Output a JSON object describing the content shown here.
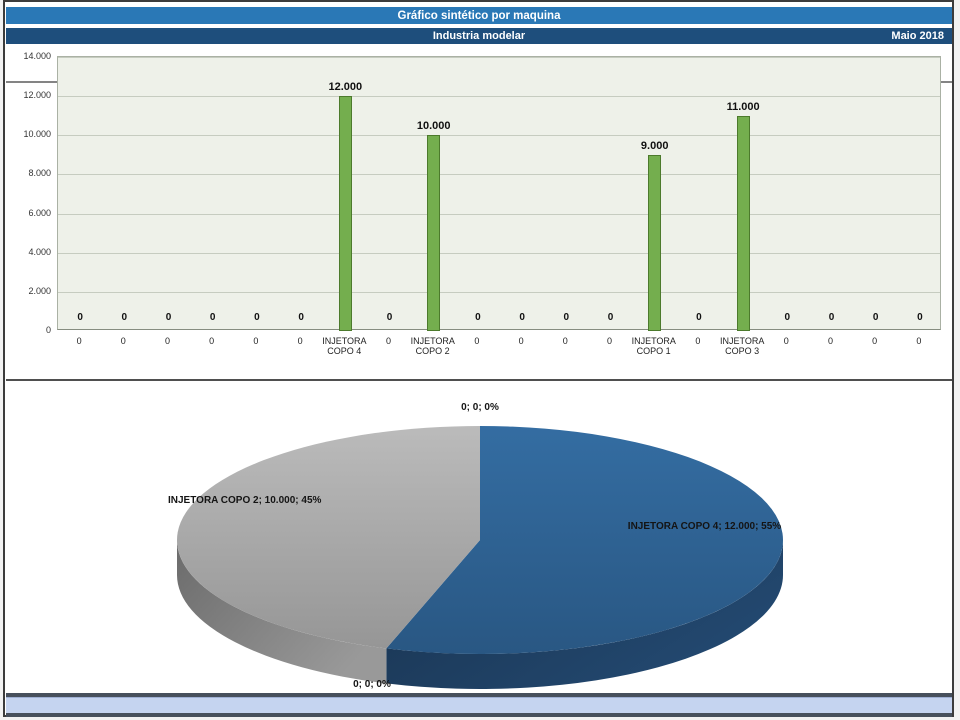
{
  "window": {
    "title": "Gráfico sintético por maquina",
    "subtitle": "Industria modelar",
    "period": "Maio 2018"
  },
  "theme": {
    "header1_bg": "#2a78b6",
    "header2_bg": "#1e4e7c",
    "header_text": "#ffffff",
    "frame_border": "#3c3c3c",
    "footer_bar_bg": "#c5d4f0",
    "footer_line": "#47505c"
  },
  "chart_data": [
    {
      "type": "bar",
      "title": "",
      "categories": [
        "0",
        "0",
        "0",
        "0",
        "0",
        "0",
        "INJETORA COPO 4",
        "0",
        "INJETORA COPO 2",
        "0",
        "0",
        "0",
        "0",
        "INJETORA COPO 1",
        "0",
        "INJETORA COPO 3",
        "0",
        "0",
        "0",
        "0"
      ],
      "values": [
        0,
        0,
        0,
        0,
        0,
        0,
        12000,
        0,
        10000,
        0,
        0,
        0,
        0,
        9000,
        0,
        11000,
        0,
        0,
        0,
        0
      ],
      "value_labels": [
        "0",
        "0",
        "0",
        "0",
        "0",
        "0",
        "12.000",
        "0",
        "10.000",
        "0",
        "0",
        "0",
        "0",
        "9.000",
        "0",
        "11.000",
        "0",
        "0",
        "0",
        "0"
      ],
      "y_ticks": [
        "14.000",
        "12.000",
        "10.000",
        "8.000",
        "6.000",
        "4.000",
        "2.000",
        "0"
      ],
      "ylim": [
        0,
        14000
      ],
      "grid": true,
      "legend": "none",
      "plot_bg": "#eef1e9",
      "gridline_color": "#c6ccc0",
      "bar_fill": "#74ae4e",
      "bar_border": "#4c7a2c"
    },
    {
      "type": "pie",
      "style": "3d",
      "start": "top",
      "direction": "clockwise",
      "slices": [
        {
          "name": "0",
          "value": 0,
          "pct": 0,
          "label": "0; 0; 0%"
        },
        {
          "name": "INJETORA COPO 4",
          "value": 12000,
          "pct": 55,
          "label": "INJETORA COPO 4; 12.000; 55%",
          "top_color": "#2e6191",
          "side_color": "#1e3e60"
        },
        {
          "name": "0",
          "value": 0,
          "pct": 0,
          "label": "0; 0; 0%"
        },
        {
          "name": "INJETORA COPO 2",
          "value": 10000,
          "pct": 45,
          "label": "INJETORA COPO 2; 10.000; 45%",
          "top_color": "#a7a7a7",
          "side_color": "#828282"
        }
      ]
    }
  ]
}
